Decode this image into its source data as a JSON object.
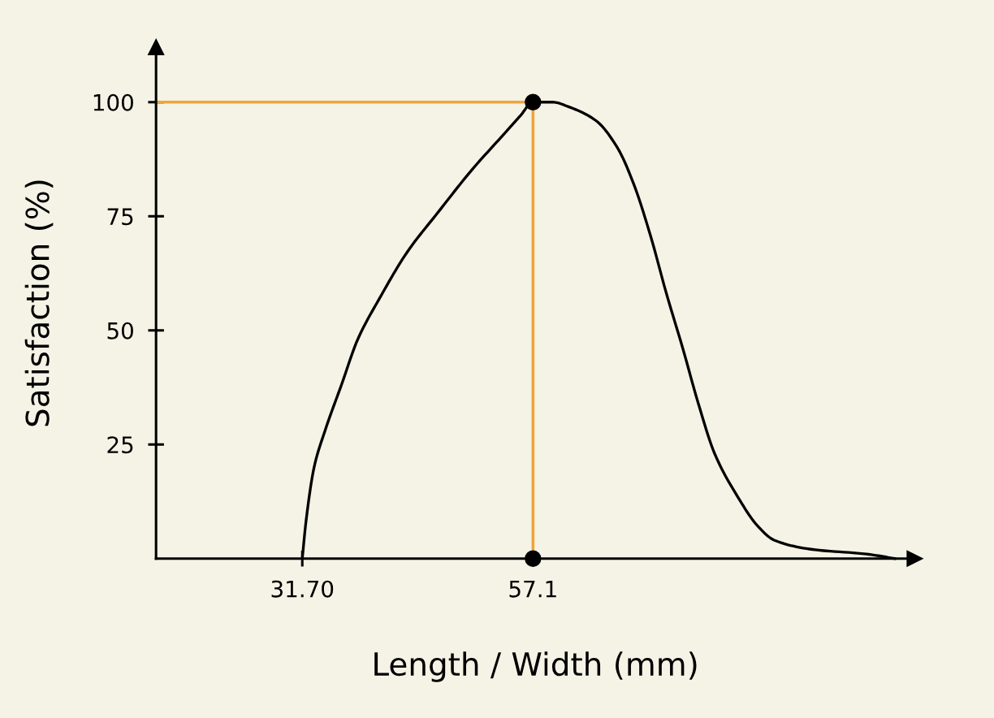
{
  "chart_data": {
    "type": "line",
    "xlabel": "Length / Width (mm)",
    "ylabel": "Satisfaction (%)",
    "xlim": [
      15.6,
      99.1
    ],
    "ylim": [
      0,
      112
    ],
    "xticks": [
      {
        "value": 31.7,
        "label": "31.70"
      },
      57.1
    ],
    "yticks": [
      25,
      50,
      75,
      100
    ],
    "grid": false,
    "series": [
      {
        "color": "#000000",
        "x": [
          31.7,
          32.1,
          33.0,
          34.2,
          36.0,
          37.8,
          40.2,
          43.2,
          46.7,
          50.3,
          53.9,
          55.7,
          57.1,
          59.3,
          61.0,
          64.0,
          66.4,
          68.2,
          70.0,
          71.8,
          73.6,
          75.3,
          77.1,
          79.5,
          81.9,
          83.7,
          87.9,
          93.8,
          97.0
        ],
        "values": [
          0,
          8,
          20,
          28,
          38,
          48,
          57,
          67,
          76,
          85,
          93,
          97,
          100,
          100,
          99,
          96,
          90,
          82,
          71,
          58,
          46,
          34,
          23,
          14,
          7,
          4,
          2,
          1,
          0
        ]
      },
      {
        "type": "scatter",
        "color": "#000000",
        "x": [
          57.1,
          57.1
        ],
        "values": [
          100,
          0
        ]
      }
    ],
    "ref_lines": [
      {
        "axis": "y",
        "value": 100,
        "color": "#f2a43a"
      },
      {
        "axis": "x",
        "value": 57.1,
        "color": "#f2a43a"
      }
    ]
  }
}
